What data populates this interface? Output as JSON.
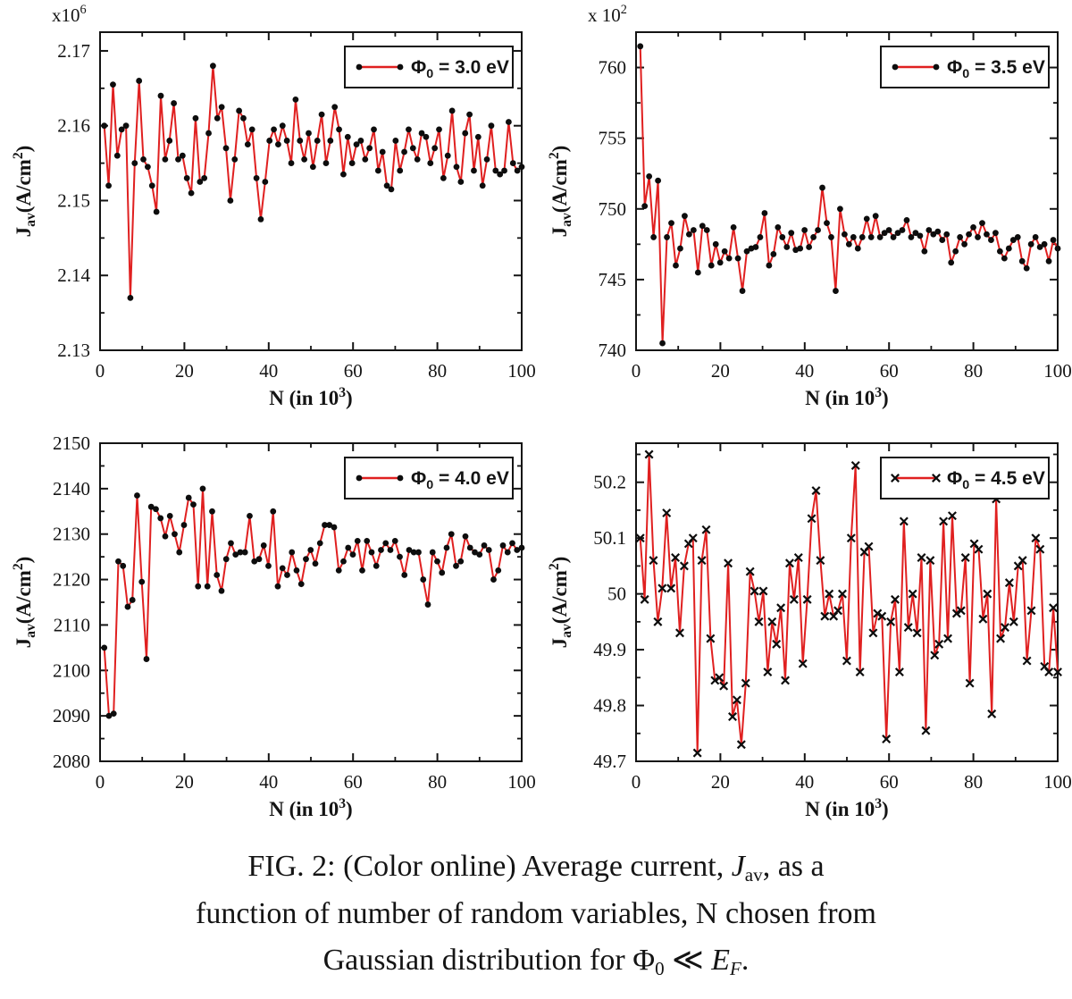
{
  "page": {
    "background": "#ffffff"
  },
  "colors": {
    "line": "#e02020",
    "marker": "#0d0d0d",
    "frame": "#141414",
    "text": "#141414",
    "legend_background": "#ffffff"
  },
  "caption": {
    "text": "FIG. 2: (Color online) Average current, Jav, as a function of number of random variables, N chosen from Gaussian distribution for Φ0 ≪ EF.",
    "lines": [
      [
        {
          "t": "FIG. 2: (Color online) Average current, "
        },
        {
          "t": "J",
          "i": true
        },
        {
          "t": "av",
          "sub": true
        },
        {
          "t": ", as a"
        }
      ],
      [
        {
          "t": "function of number of random variables, N chosen from"
        }
      ],
      [
        {
          "t": "Gaussian distribution for "
        },
        {
          "t": "Φ"
        },
        {
          "t": "0",
          "sub": true
        },
        {
          "t": " ≪ "
        },
        {
          "t": "E",
          "i": true
        },
        {
          "t": "F",
          "sub": true,
          "i": true
        },
        {
          "t": "."
        }
      ]
    ]
  },
  "chart_data": [
    {
      "id": "phi-3.0-ev",
      "type": "line",
      "legend": "Φ0 = 3.0 eV",
      "legend_parts": [
        {
          "t": "Φ"
        },
        {
          "t": "0",
          "sub": true
        },
        {
          "t": " = 3.0 eV"
        }
      ],
      "scale_note": "x10^6",
      "scale_parts": [
        {
          "t": "x10"
        },
        {
          "t": "6",
          "sup": true
        }
      ],
      "xlabel": "N (in 10^3)",
      "xlabel_parts": [
        {
          "t": "N (in 10"
        },
        {
          "t": "3",
          "sup": true
        },
        {
          "t": ")"
        }
      ],
      "ylabel": "Jav(A/cm^2)",
      "ylabel_parts": [
        {
          "t": "J"
        },
        {
          "t": "av",
          "sub": true
        },
        {
          "t": "(A/cm"
        },
        {
          "t": "2",
          "sup": true
        },
        {
          "t": ")"
        }
      ],
      "xlim": [
        0,
        100
      ],
      "ylim": [
        2.13,
        2.1725
      ],
      "xticks": [
        0,
        20,
        40,
        60,
        80,
        100
      ],
      "xtick_labels": [
        "0",
        "20",
        "40",
        "60",
        "80",
        "100"
      ],
      "xminor": 10,
      "yticks": [
        2.13,
        2.14,
        2.15,
        2.16,
        2.17
      ],
      "ytick_labels": [
        "2.13",
        "2.14",
        "2.15",
        "2.16",
        "2.17"
      ],
      "yminor": 0.005,
      "marker": "circle",
      "x_range": [
        1,
        100
      ],
      "values": [
        2.16,
        2.152,
        2.1655,
        2.156,
        2.1595,
        2.16,
        2.137,
        2.155,
        2.166,
        2.1555,
        2.1545,
        2.152,
        2.1485,
        2.164,
        2.1555,
        2.158,
        2.163,
        2.1555,
        2.156,
        2.153,
        2.151,
        2.161,
        2.1525,
        2.153,
        2.159,
        2.168,
        2.161,
        2.1625,
        2.157,
        2.15,
        2.1555,
        2.162,
        2.161,
        2.1575,
        2.1595,
        2.153,
        2.1475,
        2.1525,
        2.158,
        2.1595,
        2.1575,
        2.16,
        2.158,
        2.155,
        2.1635,
        2.158,
        2.1555,
        2.159,
        2.1545,
        2.158,
        2.1615,
        2.155,
        2.158,
        2.1625,
        2.1595,
        2.1535,
        2.1585,
        2.155,
        2.1575,
        2.158,
        2.1555,
        2.157,
        2.1595,
        2.154,
        2.1565,
        2.152,
        2.1515,
        2.158,
        2.154,
        2.1565,
        2.1595,
        2.157,
        2.1555,
        2.159,
        2.1585,
        2.155,
        2.157,
        2.1595,
        2.153,
        2.156,
        2.162,
        2.1545,
        2.1525,
        2.159,
        2.1615,
        2.154,
        2.1585,
        2.152,
        2.1555,
        2.16,
        2.154,
        2.1535,
        2.154,
        2.1605,
        2.155,
        2.154,
        2.1545
      ]
    },
    {
      "id": "phi-3.5-ev",
      "type": "line",
      "legend": "Φ0 = 3.5 eV",
      "legend_parts": [
        {
          "t": "Φ"
        },
        {
          "t": "0",
          "sub": true
        },
        {
          "t": " = 3.5 eV"
        }
      ],
      "scale_note": "x 10^2",
      "scale_parts": [
        {
          "t": "x 10"
        },
        {
          "t": "2",
          "sup": true
        }
      ],
      "xlabel": "N (in 10^3)",
      "xlabel_parts": [
        {
          "t": "N (in 10"
        },
        {
          "t": "3",
          "sup": true
        },
        {
          "t": ")"
        }
      ],
      "ylabel": "Jav(A/cm^2)",
      "ylabel_parts": [
        {
          "t": "J"
        },
        {
          "t": "av",
          "sub": true
        },
        {
          "t": "(A/cm"
        },
        {
          "t": "2",
          "sup": true
        },
        {
          "t": ")"
        }
      ],
      "xlim": [
        0,
        100
      ],
      "ylim": [
        740,
        762.5
      ],
      "xticks": [
        0,
        20,
        40,
        60,
        80,
        100
      ],
      "xtick_labels": [
        "0",
        "20",
        "40",
        "60",
        "80",
        "100"
      ],
      "xminor": 10,
      "yticks": [
        740,
        745,
        750,
        755,
        760
      ],
      "ytick_labels": [
        "740",
        "745",
        "750",
        "755",
        "760"
      ],
      "yminor": 2.5,
      "marker": "circle",
      "x_range": [
        1,
        100
      ],
      "values": [
        761.5,
        750.2,
        752.3,
        748.0,
        752.0,
        740.5,
        748.0,
        749.0,
        746.0,
        747.2,
        749.5,
        748.2,
        748.5,
        745.5,
        748.8,
        748.5,
        746.0,
        747.5,
        746.2,
        747.0,
        746.5,
        748.7,
        746.5,
        744.2,
        747.0,
        747.2,
        747.3,
        748.0,
        749.7,
        746.0,
        746.8,
        748.7,
        748.0,
        747.3,
        748.3,
        747.1,
        747.2,
        748.5,
        747.3,
        748.0,
        748.5,
        751.5,
        749.0,
        748.0,
        744.2,
        750.0,
        748.2,
        747.5,
        748.0,
        747.2,
        748.0,
        749.3,
        748.0,
        749.5,
        748.0,
        748.3,
        748.5,
        748.0,
        748.3,
        748.5,
        749.2,
        748.0,
        748.3,
        748.1,
        747.0,
        748.5,
        748.2,
        748.4,
        747.8,
        748.2,
        746.2,
        747.0,
        748.0,
        747.5,
        748.2,
        748.7,
        748.0,
        749.0,
        748.2,
        747.8,
        748.3,
        747.0,
        746.5,
        747.2,
        747.8,
        748.0,
        746.3,
        745.8,
        747.5,
        748.0,
        747.3,
        747.5,
        746.3,
        747.8,
        747.2
      ]
    },
    {
      "id": "phi-4.0-ev",
      "type": "line",
      "legend": "Φ0 = 4.0 eV",
      "legend_parts": [
        {
          "t": "Φ"
        },
        {
          "t": "0",
          "sub": true
        },
        {
          "t": " = 4.0 eV"
        }
      ],
      "scale_note": "",
      "scale_parts": [],
      "xlabel": "N (in 10^3)",
      "xlabel_parts": [
        {
          "t": "N (in 10"
        },
        {
          "t": "3",
          "sup": true
        },
        {
          "t": ")"
        }
      ],
      "ylabel": "Jav(A/cm^2)",
      "ylabel_parts": [
        {
          "t": "J"
        },
        {
          "t": "av",
          "sub": true
        },
        {
          "t": "(A/cm"
        },
        {
          "t": "2",
          "sup": true
        },
        {
          "t": ")"
        }
      ],
      "xlim": [
        0,
        100
      ],
      "ylim": [
        2080,
        2150
      ],
      "xticks": [
        0,
        20,
        40,
        60,
        80,
        100
      ],
      "xtick_labels": [
        "0",
        "20",
        "40",
        "60",
        "80",
        "100"
      ],
      "xminor": 10,
      "yticks": [
        2080,
        2090,
        2100,
        2110,
        2120,
        2130,
        2140,
        2150
      ],
      "ytick_labels": [
        "2080",
        "2090",
        "2100",
        "2110",
        "2120",
        "2130",
        "2140",
        "2150"
      ],
      "yminor": 5,
      "marker": "circle",
      "x_range": [
        1,
        100
      ],
      "values": [
        2105,
        2090,
        2090.5,
        2124,
        2123,
        2114,
        2115.5,
        2138.5,
        2119.5,
        2102.5,
        2136,
        2135.5,
        2133.5,
        2129.5,
        2134,
        2130,
        2126,
        2132,
        2138,
        2136.5,
        2118.5,
        2140,
        2118.5,
        2135,
        2121,
        2117.5,
        2124.5,
        2128,
        2125.5,
        2126,
        2126,
        2134,
        2124,
        2124.5,
        2127.5,
        2123,
        2135,
        2118.5,
        2122.5,
        2121,
        2126,
        2122,
        2119,
        2124.5,
        2126.5,
        2123.5,
        2128,
        2132,
        2132,
        2131.5,
        2122,
        2124,
        2127,
        2125.5,
        2128.5,
        2122,
        2128.5,
        2126,
        2123,
        2126.5,
        2128,
        2126.5,
        2128.5,
        2125,
        2121,
        2126.5,
        2126,
        2126,
        2120,
        2114.5,
        2126,
        2124,
        2121.5,
        2127,
        2130,
        2123,
        2124,
        2129.5,
        2127,
        2126,
        2125.5,
        2127.5,
        2126.5,
        2120,
        2122,
        2127.5,
        2126,
        2128,
        2126.5,
        2127
      ]
    },
    {
      "id": "phi-4.5-ev",
      "type": "line",
      "legend": "Φ0 = 4.5 eV",
      "legend_parts": [
        {
          "t": "Φ"
        },
        {
          "t": "0",
          "sub": true
        },
        {
          "t": " = 4.5 eV"
        }
      ],
      "scale_note": "",
      "scale_parts": [],
      "xlabel": "N (in 10^3)",
      "xlabel_parts": [
        {
          "t": "N (in 10"
        },
        {
          "t": "3",
          "sup": true
        },
        {
          "t": ")"
        }
      ],
      "ylabel": "Jav(A/cm^2)",
      "ylabel_parts": [
        {
          "t": "J"
        },
        {
          "t": "av",
          "sub": true
        },
        {
          "t": "(A/cm"
        },
        {
          "t": "2",
          "sup": true
        },
        {
          "t": ")"
        }
      ],
      "xlim": [
        0,
        100
      ],
      "ylim": [
        49.7,
        50.27
      ],
      "xticks": [
        0,
        20,
        40,
        60,
        80,
        100
      ],
      "xtick_labels": [
        "0",
        "20",
        "40",
        "60",
        "80",
        "100"
      ],
      "xminor": 10,
      "yticks": [
        49.7,
        49.8,
        49.9,
        50,
        50.1,
        50.2
      ],
      "ytick_labels": [
        "49.7",
        "49.8",
        "49.9",
        "50",
        "50.1",
        "50.2"
      ],
      "yminor": 0.05,
      "marker": "x",
      "x_range": [
        1,
        100
      ],
      "values": [
        50.1,
        49.99,
        50.25,
        50.06,
        49.95,
        50.01,
        50.145,
        50.01,
        50.065,
        49.93,
        50.05,
        50.09,
        50.1,
        49.715,
        50.06,
        50.115,
        49.92,
        49.845,
        49.85,
        49.835,
        50.055,
        49.78,
        49.81,
        49.73,
        49.84,
        50.04,
        50.005,
        49.95,
        50.005,
        49.86,
        49.95,
        49.91,
        49.975,
        49.845,
        50.055,
        49.99,
        50.065,
        49.875,
        49.99,
        50.135,
        50.185,
        50.06,
        49.96,
        50.0,
        49.96,
        49.97,
        50.0,
        49.88,
        50.1,
        50.23,
        49.86,
        50.075,
        50.085,
        49.93,
        49.965,
        49.96,
        49.74,
        49.95,
        49.99,
        49.86,
        50.13,
        49.94,
        50.0,
        49.93,
        50.065,
        49.755,
        50.06,
        49.89,
        49.91,
        50.13,
        49.92,
        50.14,
        49.965,
        49.97,
        50.065,
        49.84,
        50.09,
        50.08,
        49.955,
        50.0,
        49.785,
        50.17,
        49.92,
        49.94,
        50.02,
        49.95,
        50.05,
        50.06,
        49.88,
        49.97,
        50.1,
        50.08,
        49.87,
        49.86,
        49.975,
        49.86
      ]
    }
  ]
}
